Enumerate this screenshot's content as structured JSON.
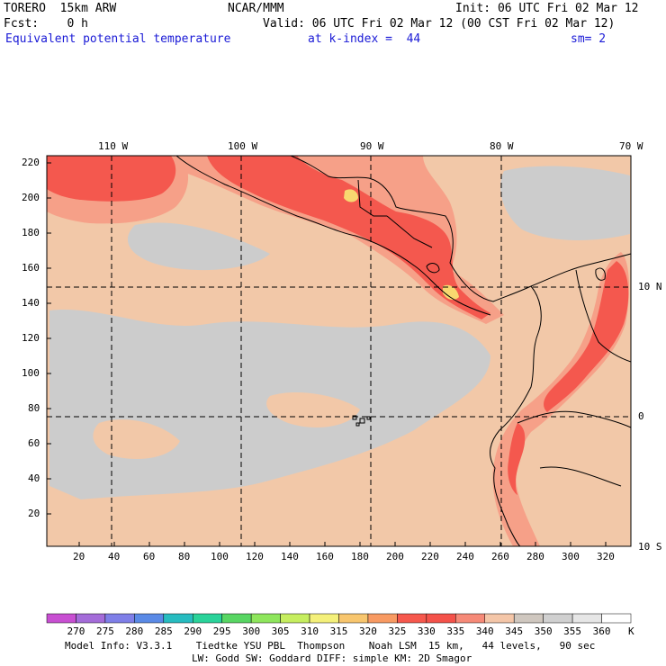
{
  "header": {
    "model": "TORERO  15km ARW",
    "center": "NCAR/MMM",
    "init": "Init: 06 UTC Fri 02 Mar 12",
    "fcst": "Fcst:    0 h",
    "valid": "Valid: 06 UTC Fri 02 Mar 12 (00 CST Fri 02 Mar 12)",
    "field": "Equivalent potential temperature",
    "level": "at k-index =  44",
    "smooth": "sm= 2"
  },
  "top_lon_labels": [
    "110 W",
    "100 W",
    "90 W",
    "80 W",
    "70 W"
  ],
  "right_lat_labels": [
    "10 N",
    "0",
    "10 S"
  ],
  "y_ticks": [
    "220",
    "200",
    "180",
    "160",
    "140",
    "120",
    "100",
    "80",
    "60",
    "40",
    "20"
  ],
  "x_ticks": [
    "20",
    "40",
    "60",
    "80",
    "100",
    "120",
    "140",
    "160",
    "180",
    "200",
    "220",
    "240",
    "260",
    "280",
    "300",
    "320"
  ],
  "colorbar": {
    "labels": [
      "270",
      "275",
      "280",
      "285",
      "290",
      "295",
      "300",
      "305",
      "310",
      "315",
      "320",
      "325",
      "330",
      "335",
      "340",
      "345",
      "350",
      "355",
      "360"
    ],
    "unit": "K",
    "colors": [
      "#c84fd2",
      "#a46cd9",
      "#7f7fe8",
      "#5a8ae6",
      "#27bcc0",
      "#2ad39a",
      "#58d663",
      "#8ee65c",
      "#c6ee5f",
      "#f4f07a",
      "#f8c66e",
      "#f89a62",
      "#f6584d",
      "#f4524a",
      "#f68a78",
      "#f4c6a8",
      "#cfc7bf",
      "#d0d0d0",
      "#e6e6e6",
      "#ffffff"
    ]
  },
  "footer": {
    "line1": "Model Info: V3.3.1    Tiedtke YSU PBL  Thompson    Noah LSM  15 km,   44 levels,   90 sec",
    "line2": "LW: Godd SW: Goddard DIFF: simple KM: 2D Smagor"
  },
  "fill_colors": {
    "background": "#d0c8c0",
    "warm": "#f2c8a8",
    "cool": "#cccccc",
    "salmon": "#f6a088",
    "red": "#f4584e",
    "peak": "#f8d870",
    "outline": "#000000"
  }
}
